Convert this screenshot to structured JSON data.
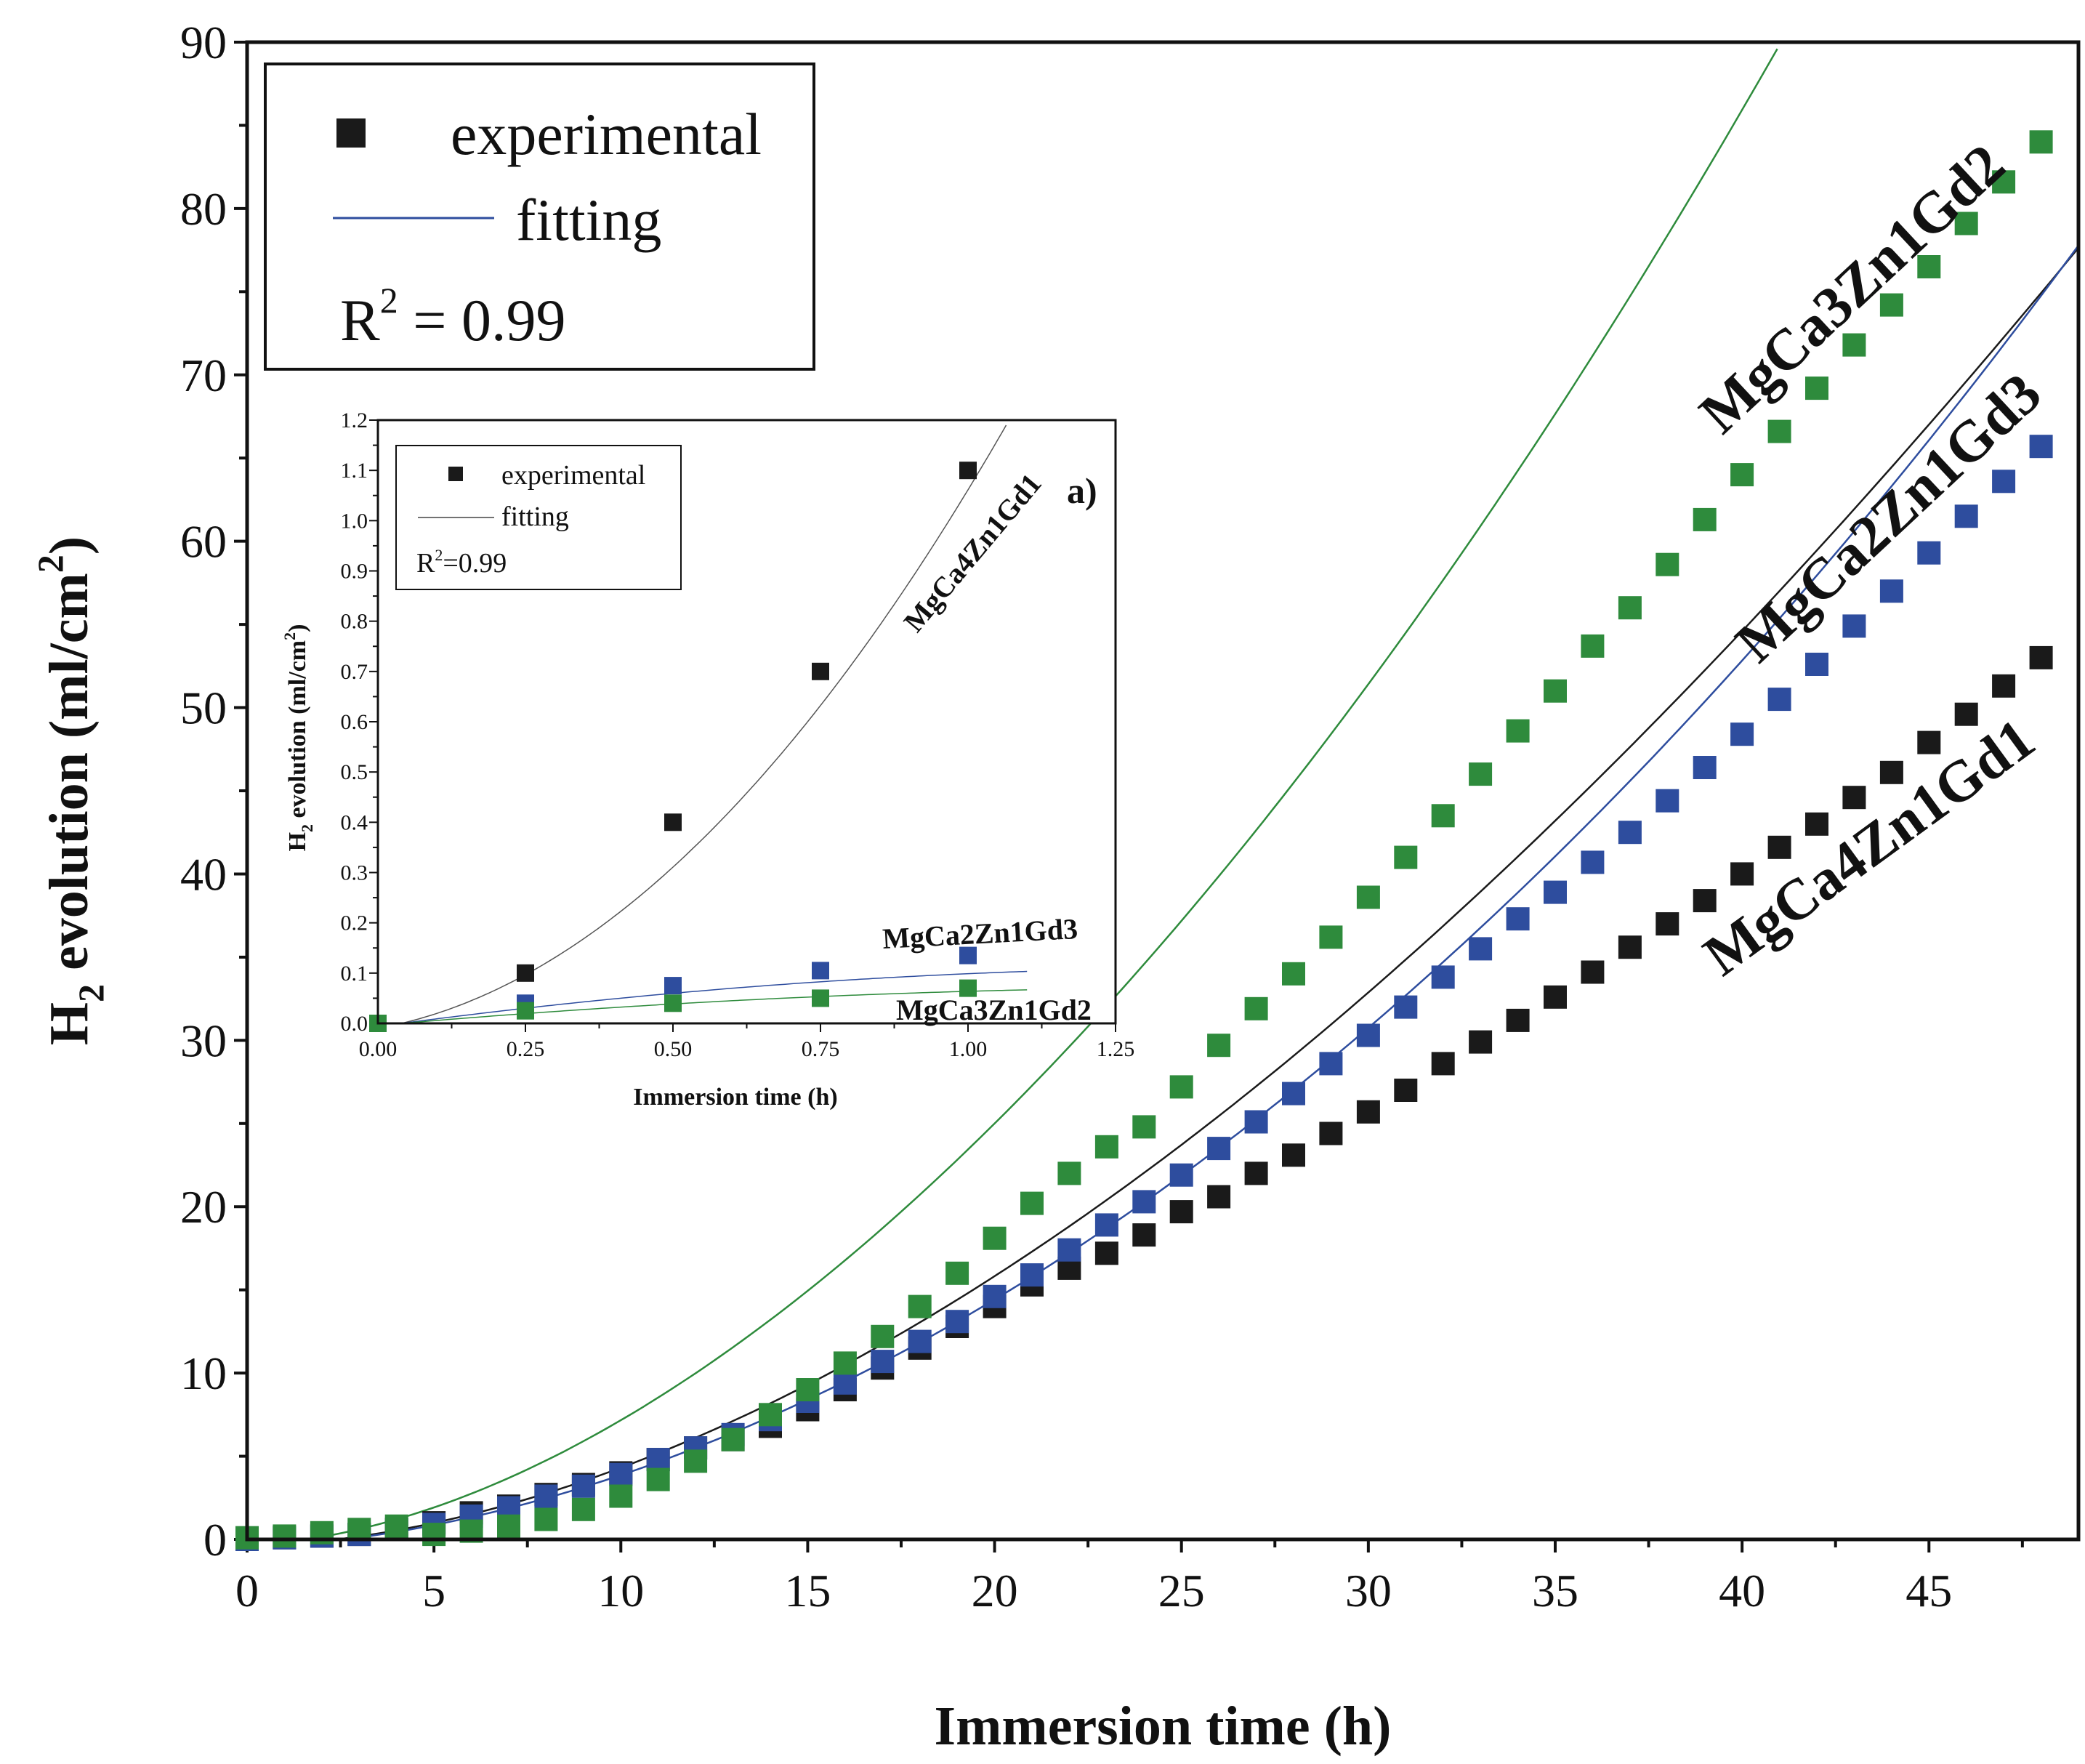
{
  "chart_data": [
    {
      "type": "scatter",
      "title": "",
      "xlabel": "Immersion time (h)",
      "ylabel": "H2 evolution (ml/cm2)",
      "ylabel_parts": {
        "pre": "H",
        "sub": "2",
        "mid": " evolution (ml/cm",
        "sup": "2",
        "post": ")"
      },
      "xlim": [
        0,
        49
      ],
      "ylim": [
        0,
        90
      ],
      "xticks": [
        0,
        5,
        10,
        15,
        20,
        25,
        30,
        35,
        40,
        45
      ],
      "yticks": [
        0,
        10,
        20,
        30,
        40,
        50,
        60,
        70,
        80,
        90
      ],
      "legend": {
        "position": "top-left",
        "entries": [
          "experimental",
          "fitting"
        ],
        "r2_label": "R",
        "r2_sup": "2",
        "r2_value": " = 0.99"
      },
      "series": [
        {
          "name": "MgCa4Zn1Gd1",
          "color": "#1a1a1a",
          "x": [
            0,
            1,
            2,
            3,
            4,
            5,
            6,
            7,
            8,
            9,
            10,
            11,
            12,
            13,
            14,
            15,
            16,
            17,
            18,
            19,
            20,
            21,
            22,
            23,
            24,
            25,
            26,
            27,
            28,
            29,
            30,
            31,
            32,
            33,
            34,
            35,
            36,
            37,
            38,
            39,
            40,
            41,
            42,
            43,
            44,
            45,
            46,
            47,
            48
          ],
          "y": [
            0,
            0.1,
            0.2,
            0.3,
            0.6,
            1.0,
            1.6,
            2.0,
            2.7,
            3.3,
            4.0,
            4.8,
            5.5,
            6.0,
            6.8,
            7.8,
            9.0,
            10.3,
            11.5,
            12.8,
            14.0,
            15.3,
            16.3,
            17.2,
            18.3,
            19.7,
            20.6,
            22.0,
            23.1,
            24.4,
            25.7,
            27.0,
            28.6,
            29.9,
            31.2,
            32.6,
            34.1,
            35.6,
            37.0,
            38.4,
            40.0,
            41.6,
            43.0,
            44.6,
            46.1,
            47.9,
            49.6,
            51.3,
            53.0
          ],
          "fit": {
            "x0": 2.4,
            "a": 0.04,
            "b": 0.0087,
            "c": 2.75e-05
          }
        },
        {
          "name": "MgCa2Zn1Gd3",
          "color": "#2e4d9e",
          "x": [
            0,
            1,
            2,
            3,
            4,
            5,
            6,
            7,
            8,
            9,
            10,
            11,
            12,
            13,
            14,
            15,
            16,
            17,
            18,
            19,
            20,
            21,
            22,
            23,
            24,
            25,
            26,
            27,
            28,
            29,
            30,
            31,
            32,
            33,
            34,
            35,
            36,
            37,
            38,
            39,
            40,
            41,
            42,
            43,
            44,
            45,
            46,
            47,
            48
          ],
          "y": [
            0,
            0.1,
            0.2,
            0.3,
            0.6,
            0.9,
            1.4,
            1.9,
            2.6,
            3.2,
            3.9,
            4.8,
            5.5,
            6.3,
            7.2,
            8.3,
            9.4,
            10.7,
            11.9,
            13.1,
            14.6,
            15.9,
            17.4,
            18.9,
            20.3,
            21.9,
            23.5,
            25.1,
            26.8,
            28.6,
            30.3,
            32.0,
            33.8,
            35.5,
            37.3,
            38.9,
            40.7,
            42.5,
            44.4,
            46.4,
            48.4,
            50.5,
            52.6,
            54.9,
            57.0,
            59.3,
            61.5,
            63.6,
            65.7
          ],
          "fit": {
            "x0": 2.6,
            "a": 0.034,
            "b": 0.01,
            "c": 0.000148
          }
        },
        {
          "name": "MgCa3Zn1Gd2",
          "color": "#2e8b3c",
          "x": [
            0,
            1,
            2,
            3,
            4,
            5,
            6,
            7,
            8,
            9,
            10,
            11,
            12,
            13,
            14,
            15,
            16,
            17,
            18,
            19,
            20,
            21,
            22,
            23,
            24,
            25,
            26,
            27,
            28,
            29,
            30,
            31,
            32,
            33,
            34,
            35,
            36,
            37,
            38,
            39,
            40,
            41,
            42,
            43,
            44,
            45,
            46,
            47,
            48
          ],
          "y": [
            0.1,
            0.2,
            0.4,
            0.6,
            0.8,
            0.3,
            0.5,
            0.8,
            1.2,
            1.8,
            2.6,
            3.6,
            4.7,
            6.0,
            7.5,
            9.0,
            10.6,
            12.2,
            14.0,
            16.0,
            18.1,
            20.2,
            22.0,
            23.6,
            24.8,
            27.2,
            29.7,
            31.9,
            34.0,
            36.2,
            38.6,
            41.0,
            43.5,
            46.0,
            48.6,
            51.0,
            53.7,
            56.0,
            58.6,
            61.3,
            64.0,
            66.6,
            69.2,
            71.8,
            74.2,
            76.5,
            79.1,
            81.6,
            84.0
          ],
          "fit": {
            "x0": 1.6,
            "a": 0.066,
            "b": 0.0165,
            "c": 0.000228
          }
        }
      ]
    },
    {
      "type": "scatter",
      "title": "",
      "panel_label": "a)",
      "xlabel": "Immersion time (h)",
      "ylabel": "H2 evolution (ml/cm2)",
      "ylabel_parts": {
        "pre": "H",
        "sub": "2",
        "mid": " evolution (ml/cm",
        "sup": "2",
        "post": ")"
      },
      "xlim": [
        0,
        1.25
      ],
      "ylim": [
        0,
        1.2
      ],
      "xticks": [
        "0.00",
        "0.25",
        "0.50",
        "0.75",
        "1.00",
        "1.25"
      ],
      "yticks": [
        "0.0",
        "0.1",
        "0.2",
        "0.3",
        "0.4",
        "0.5",
        "0.6",
        "0.7",
        "0.8",
        "0.9",
        "1.0",
        "1.1",
        "1.2"
      ],
      "legend": {
        "position": "top-left",
        "entries": [
          "experimental",
          "fitting"
        ],
        "r2_label": "R",
        "r2_sup": "2",
        "r2_value": "=0.99"
      },
      "series": [
        {
          "name": "MgCa4Zn1Gd1",
          "color": "#1a1a1a",
          "x": [
            0,
            0.25,
            0.5,
            0.75,
            1.0
          ],
          "y": [
            0,
            0.1,
            0.4,
            0.7,
            1.1
          ],
          "fit": {
            "x0": 0.04,
            "a": 0.5,
            "b": 0.82,
            "c": 0
          }
        },
        {
          "name": "MgCa2Zn1Gd3",
          "color": "#2e4d9e",
          "x": [
            0,
            0.25,
            0.5,
            0.75,
            1.0
          ],
          "y": [
            0,
            0.04,
            0.075,
            0.105,
            0.135
          ],
          "fit": {
            "x0": 0.04,
            "a": 0.155,
            "b": -0.02,
            "c": 0
          }
        },
        {
          "name": "MgCa3Zn1Gd2",
          "color": "#2e8b3c",
          "x": [
            0,
            0.25,
            0.5,
            0.75,
            1.0
          ],
          "y": [
            0,
            0.025,
            0.04,
            0.05,
            0.07
          ],
          "fit": {
            "x0": 0.04,
            "a": 0.1,
            "b": -0.045,
            "c": 0
          }
        }
      ]
    }
  ]
}
